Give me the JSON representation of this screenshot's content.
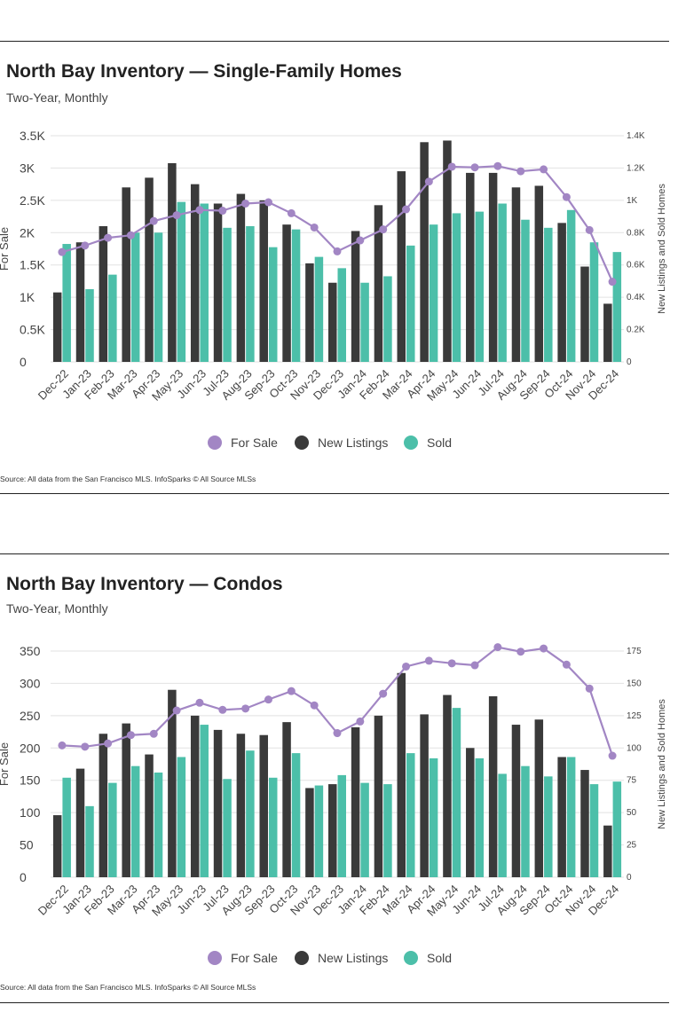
{
  "chart_data": [
    {
      "type": "bar",
      "title": "North Bay Inventory — Single-Family Homes",
      "subtitle": "Two-Year, Monthly",
      "source": "Source:  All data from the San Francisco MLS. InfoSparks © All Source MLSs",
      "ylabel_left": "For Sale",
      "ylabel_right": "New Listings and Sold Homes",
      "ylim_left": [
        0,
        3500
      ],
      "ylim_right": [
        0,
        1400
      ],
      "yticks_left": [
        "0",
        "0.5K",
        "1K",
        "1.5K",
        "2K",
        "2.5K",
        "3K",
        "3.5K"
      ],
      "yticks_right": [
        "0",
        "0.2K",
        "0.4K",
        "0.6K",
        "0.8K",
        "1K",
        "1.2K",
        "1.4K"
      ],
      "categories": [
        "Dec-22",
        "Jan-23",
        "Feb-23",
        "Mar-23",
        "Apr-23",
        "May-23",
        "Jun-23",
        "Jul-23",
        "Aug-23",
        "Sep-23",
        "Oct-23",
        "Nov-23",
        "Dec-23",
        "Jan-24",
        "Feb-24",
        "Mar-24",
        "Apr-24",
        "May-24",
        "Jun-24",
        "Jul-24",
        "Aug-24",
        "Sep-24",
        "Oct-24",
        "Nov-24",
        "Dec-24"
      ],
      "legend": [
        "For Sale",
        "New Listings",
        "Sold"
      ],
      "colors": {
        "for_sale": "#a286c4",
        "new_listings": "#3a3a3a",
        "sold": "#4cbfa9"
      },
      "series": [
        {
          "name": "For Sale",
          "axis": "left",
          "kind": "line",
          "values": [
            1700,
            1800,
            1920,
            1960,
            2180,
            2270,
            2350,
            2340,
            2450,
            2470,
            2300,
            2080,
            1710,
            1880,
            2050,
            2360,
            2790,
            3020,
            3010,
            3030,
            2950,
            2980,
            2550,
            2040,
            1240
          ]
        },
        {
          "name": "New Listings",
          "axis": "right",
          "kind": "bar",
          "values": [
            430,
            740,
            840,
            1080,
            1140,
            1230,
            1100,
            980,
            1040,
            1000,
            850,
            610,
            490,
            810,
            970,
            1180,
            1360,
            1370,
            1170,
            1170,
            1080,
            1090,
            860,
            590,
            360
          ]
        },
        {
          "name": "Sold",
          "axis": "right",
          "kind": "bar",
          "values": [
            730,
            450,
            540,
            800,
            800,
            990,
            980,
            830,
            840,
            710,
            820,
            650,
            580,
            490,
            530,
            720,
            850,
            920,
            930,
            980,
            880,
            830,
            940,
            740,
            680
          ]
        }
      ]
    },
    {
      "type": "bar",
      "title": "North Bay Inventory — Condos",
      "subtitle": "Two-Year, Monthly",
      "source": "Source:  All data from the San Francisco MLS. InfoSparks © All Source MLSs",
      "ylabel_left": "For Sale",
      "ylabel_right": "New Listings and Sold Homes",
      "ylim_left": [
        0,
        350
      ],
      "ylim_right": [
        0,
        175
      ],
      "yticks_left": [
        "0",
        "50",
        "100",
        "150",
        "200",
        "250",
        "300",
        "350"
      ],
      "yticks_right": [
        "0",
        "25",
        "50",
        "75",
        "100",
        "125",
        "150",
        "175"
      ],
      "categories": [
        "Dec-22",
        "Jan-23",
        "Feb-23",
        "Mar-23",
        "Apr-23",
        "May-23",
        "Jun-23",
        "Jul-23",
        "Aug-23",
        "Sep-23",
        "Oct-23",
        "Nov-23",
        "Dec-23",
        "Jan-24",
        "Feb-24",
        "Mar-24",
        "Apr-24",
        "May-24",
        "Jun-24",
        "Jul-24",
        "Aug-24",
        "Sep-24",
        "Oct-24",
        "Nov-24",
        "Dec-24"
      ],
      "legend": [
        "For Sale",
        "New Listings",
        "Sold"
      ],
      "colors": {
        "for_sale": "#a286c4",
        "new_listings": "#3a3a3a",
        "sold": "#4cbfa9"
      },
      "series": [
        {
          "name": "For Sale",
          "axis": "left",
          "kind": "line",
          "values": [
            204,
            202,
            207,
            220,
            222,
            258,
            270,
            259,
            261,
            275,
            288,
            266,
            223,
            241,
            284,
            326,
            335,
            331,
            328,
            356,
            349,
            354,
            329,
            292,
            188
          ]
        },
        {
          "name": "New Listings",
          "axis": "right",
          "kind": "bar",
          "values": [
            48,
            84,
            111,
            119,
            95,
            145,
            125,
            114,
            111,
            110,
            120,
            69,
            72,
            116,
            125,
            158,
            126,
            141,
            100,
            140,
            118,
            122,
            93,
            83,
            40
          ]
        },
        {
          "name": "Sold",
          "axis": "right",
          "kind": "bar",
          "values": [
            77,
            55,
            73,
            86,
            81,
            93,
            118,
            76,
            98,
            77,
            96,
            71,
            79,
            73,
            72,
            96,
            92,
            131,
            92,
            80,
            86,
            78,
            93,
            72,
            74
          ]
        }
      ]
    }
  ]
}
